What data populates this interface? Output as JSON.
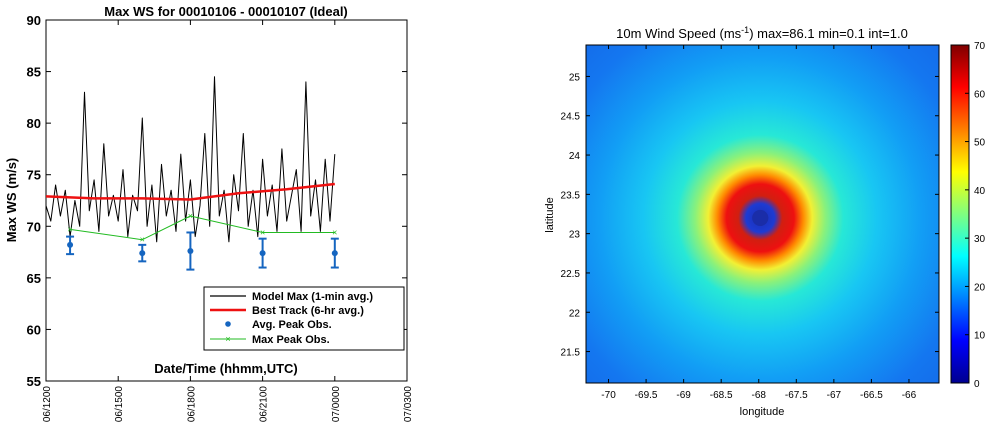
{
  "chart_data": [
    {
      "type": "line",
      "title": "Max WS for 00010106 - 00010107 (Ideal)",
      "ylabel": "Max WS (m/s)",
      "xlabel": "Date/Time (hhmm,UTC)",
      "ylim": [
        55,
        90
      ],
      "yticks": [
        "55",
        "60",
        "65",
        "70",
        "75",
        "80",
        "85",
        "90"
      ],
      "xticks": [
        "06/1200",
        "06/1500",
        "06/1800",
        "06/2100",
        "07/0000",
        "07/0300"
      ],
      "x_units": "hours after 06/1200",
      "xlim": [
        0,
        15
      ],
      "legend_position": "bottom-right",
      "series": [
        {
          "name": "Model Max (1-min avg.)",
          "color": "#000000",
          "x": [
            0,
            0.2,
            0.4,
            0.6,
            0.8,
            1.0,
            1.2,
            1.4,
            1.6,
            1.8,
            2.0,
            2.2,
            2.4,
            2.6,
            2.8,
            3.0,
            3.2,
            3.4,
            3.6,
            3.8,
            4.0,
            4.2,
            4.4,
            4.6,
            4.8,
            5.0,
            5.2,
            5.4,
            5.6,
            5.8,
            6.0,
            6.2,
            6.4,
            6.6,
            6.8,
            7.0,
            7.2,
            7.4,
            7.6,
            7.8,
            8.0,
            8.2,
            8.4,
            8.6,
            8.8,
            9.0,
            9.2,
            9.4,
            9.6,
            9.8,
            10.0,
            10.2,
            10.4,
            10.6,
            10.8,
            11.0,
            11.2,
            11.4,
            11.6,
            11.8,
            12.0
          ],
          "values": [
            72.0,
            70.5,
            74.0,
            71.0,
            73.5,
            69.0,
            72.5,
            70.0,
            83.0,
            71.5,
            74.5,
            69.5,
            78.0,
            71.0,
            73.0,
            70.5,
            75.5,
            69.0,
            73.0,
            71.5,
            80.5,
            70.0,
            74.0,
            68.5,
            76.0,
            71.0,
            73.5,
            69.5,
            77.0,
            70.5,
            74.5,
            69.0,
            72.0,
            79.0,
            70.0,
            84.5,
            71.0,
            73.5,
            68.5,
            75.0,
            71.5,
            79.0,
            70.0,
            73.5,
            69.0,
            76.5,
            71.0,
            74.0,
            69.5,
            77.5,
            70.5,
            73.0,
            75.5,
            69.5,
            84.0,
            71.0,
            74.5,
            69.5,
            76.5,
            70.5,
            77.0
          ]
        },
        {
          "name": "Best Track (6-hr avg.)",
          "color": "#ee1111",
          "x": [
            0,
            2,
            4,
            6,
            8,
            10,
            12
          ],
          "values": [
            72.9,
            72.7,
            72.7,
            72.6,
            73.2,
            73.6,
            74.1
          ]
        },
        {
          "name": "Avg. Peak Obs.",
          "color": "#1565c0",
          "x": [
            1.0,
            4.0,
            6.0,
            9.0,
            12.0
          ],
          "values": [
            68.2,
            67.4,
            67.6,
            67.4,
            67.4
          ],
          "err_low": [
            67.3,
            66.6,
            65.8,
            66.0,
            66.0
          ],
          "err_high": [
            69.0,
            68.2,
            69.4,
            68.8,
            68.8
          ]
        },
        {
          "name": "Max Peak Obs.",
          "color": "#22bb22",
          "x": [
            1.0,
            4.0,
            6.0,
            9.0,
            12.0
          ],
          "values": [
            69.7,
            68.7,
            71.0,
            69.4,
            69.4
          ]
        }
      ]
    },
    {
      "type": "heatmap",
      "title": "10m Wind Speed (ms",
      "title_sup": "-1",
      "title_tail": ") max=86.1 min=0.1 int=1.0",
      "xlabel": "longitude",
      "ylabel": "latitude",
      "xlim": [
        -70.3,
        -65.6
      ],
      "ylim": [
        21.1,
        25.4
      ],
      "xticks": [
        "-70",
        "-69.5",
        "-69",
        "-68.5",
        "-68",
        "-67.5",
        "-67",
        "-66.5",
        "-66"
      ],
      "yticks": [
        "21.5",
        "22",
        "22.5",
        "23",
        "23.5",
        "24",
        "24.5",
        "25"
      ],
      "center": {
        "lon": -67.98,
        "lat": 23.2
      },
      "eye_radius_deg": 0.18,
      "eyewall_radius_deg": 0.42,
      "colorbar": {
        "min": 0,
        "max": 70,
        "ticks": [
          "0",
          "10",
          "20",
          "30",
          "40",
          "50",
          "60",
          "70"
        ]
      }
    }
  ]
}
